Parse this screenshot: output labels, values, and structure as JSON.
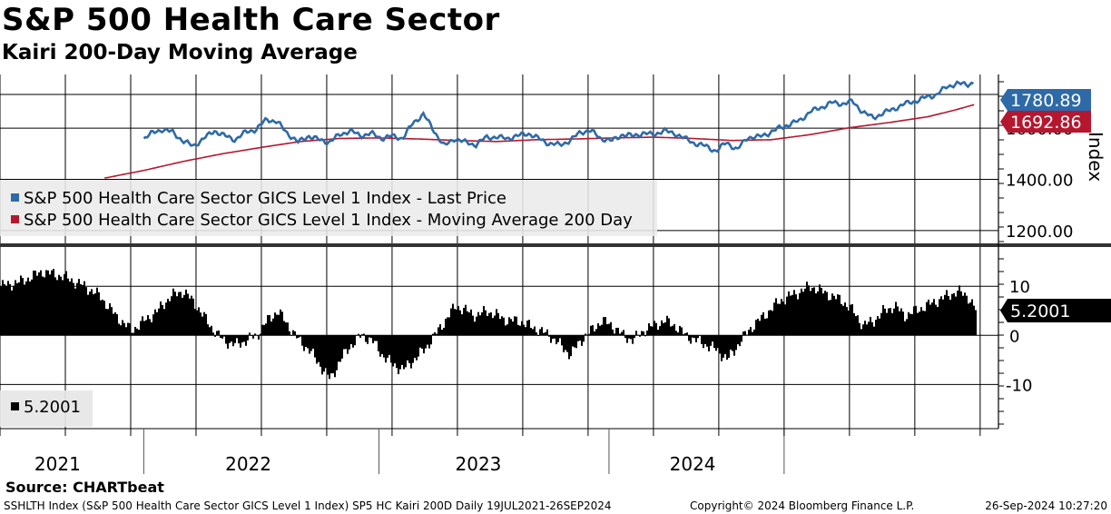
{
  "title": "S&P 500 Health Care Sector",
  "subtitle": "Kairi 200-Day Moving Average",
  "source": "Source: CHARTbeat",
  "footer": {
    "left": "SSHLTH Index (S&P 500 Health Care Sector GICS Level 1 Index) SP5 HC Kairi 200D  Daily 19JUL2021-26SEP2024",
    "middle": "Copyright© 2024 Bloomberg Finance L.P.",
    "right": "26-Sep-2024 10:27:20"
  },
  "colors": {
    "price": "#2e6aa8",
    "ma": "#b5172f",
    "kairi": "#000000",
    "grid": "#000000"
  },
  "chart_data": [
    {
      "type": "line",
      "title": "S&P 500 Health Care Sector",
      "ylabel": "Index",
      "ylim": [
        1150,
        1810
      ],
      "y_ticks": [
        "1600.00",
        "1400.00",
        "1200.00"
      ],
      "x_ticks": [
        "2021",
        "2022",
        "2023",
        "2024"
      ],
      "x_range": [
        "2021-07-19",
        "2024-09-26"
      ],
      "legend": [
        "S&P 500 Health Care Sector GICS Level 1 Index - Last Price",
        "S&P 500 Health Care Sector GICS Level 1 Index - Moving Average 200 Day"
      ],
      "last_labels": {
        "price": "1780.89",
        "ma": "1692.86"
      },
      "series": [
        {
          "name": "Last Price",
          "x": [
            2021.55,
            2021.58,
            2021.62,
            2021.66,
            2021.7,
            2021.74,
            2021.78,
            2021.82,
            2021.86,
            2021.9,
            2021.94,
            2021.98,
            2022.02,
            2022.06,
            2022.1,
            2022.14,
            2022.18,
            2022.22,
            2022.26,
            2022.3,
            2022.34,
            2022.38,
            2022.42,
            2022.46,
            2022.5,
            2022.54,
            2022.58,
            2022.62,
            2022.66,
            2022.7,
            2022.74,
            2022.78,
            2022.82,
            2022.86,
            2022.9,
            2022.94,
            2022.98,
            2023.02,
            2023.06,
            2023.1,
            2023.14,
            2023.18,
            2023.22,
            2023.26,
            2023.3,
            2023.34,
            2023.38,
            2023.42,
            2023.46,
            2023.5,
            2023.54,
            2023.58,
            2023.62,
            2023.66,
            2023.7,
            2023.74,
            2023.78,
            2023.82,
            2023.86,
            2023.9,
            2023.94,
            2023.98,
            2024.02,
            2024.06,
            2024.1,
            2024.14,
            2024.18,
            2024.22,
            2024.26,
            2024.3,
            2024.34,
            2024.38,
            2024.42,
            2024.46,
            2024.5,
            2024.54,
            2024.58,
            2024.62,
            2024.66,
            2024.7,
            2024.73
          ],
          "values": [
            1560,
            1580,
            1595,
            1585,
            1550,
            1530,
            1560,
            1590,
            1570,
            1555,
            1585,
            1595,
            1635,
            1625,
            1580,
            1545,
            1570,
            1555,
            1545,
            1575,
            1590,
            1570,
            1580,
            1560,
            1570,
            1560,
            1620,
            1655,
            1590,
            1530,
            1560,
            1545,
            1535,
            1565,
            1565,
            1560,
            1570,
            1580,
            1560,
            1540,
            1535,
            1550,
            1585,
            1590,
            1560,
            1550,
            1575,
            1570,
            1580,
            1575,
            1590,
            1580,
            1560,
            1540,
            1530,
            1510,
            1545,
            1515,
            1565,
            1565,
            1580,
            1600,
            1615,
            1630,
            1665,
            1680,
            1700,
            1695,
            1705,
            1665,
            1640,
            1660,
            1675,
            1695,
            1705,
            1720,
            1730,
            1760,
            1775,
            1770,
            1780.89
          ]
        },
        {
          "name": "Moving Average 200 Day",
          "x": [
            2021.4,
            2021.55,
            2021.7,
            2021.85,
            2022.0,
            2022.15,
            2022.3,
            2022.45,
            2022.6,
            2022.75,
            2022.9,
            2023.05,
            2023.2,
            2023.35,
            2023.5,
            2023.65,
            2023.8,
            2023.95,
            2024.1,
            2024.25,
            2024.4,
            2024.55,
            2024.65,
            2024.73
          ],
          "values": [
            1405,
            1435,
            1470,
            1500,
            1525,
            1548,
            1560,
            1562,
            1558,
            1552,
            1548,
            1555,
            1558,
            1562,
            1565,
            1560,
            1552,
            1555,
            1575,
            1602,
            1622,
            1645,
            1670,
            1692.86
          ]
        }
      ]
    },
    {
      "type": "area",
      "title": "Kairi 200-Day Moving Average",
      "ylim": [
        -19,
        18
      ],
      "y_ticks": [
        "10",
        "0",
        "-10"
      ],
      "legend": [
        "5.2001"
      ],
      "last_label": "5.2001",
      "series": [
        {
          "name": "Kairi 200D",
          "x": [
            2021.0,
            2021.08,
            2021.16,
            2021.24,
            2021.32,
            2021.38,
            2021.44,
            2021.5,
            2021.55,
            2021.6,
            2021.65,
            2021.7,
            2021.75,
            2021.8,
            2021.85,
            2021.9,
            2021.94,
            2021.98,
            2022.02,
            2022.06,
            2022.1,
            2022.14,
            2022.18,
            2022.22,
            2022.26,
            2022.3,
            2022.34,
            2022.38,
            2022.42,
            2022.46,
            2022.5,
            2022.54,
            2022.58,
            2022.62,
            2022.66,
            2022.7,
            2022.74,
            2022.78,
            2022.82,
            2022.86,
            2022.9,
            2022.94,
            2022.98,
            2023.02,
            2023.06,
            2023.1,
            2023.14,
            2023.18,
            2023.22,
            2023.26,
            2023.3,
            2023.34,
            2023.38,
            2023.42,
            2023.46,
            2023.5,
            2023.54,
            2023.58,
            2023.62,
            2023.66,
            2023.7,
            2023.74,
            2023.78,
            2023.82,
            2023.86,
            2023.9,
            2023.94,
            2023.98,
            2024.02,
            2024.06,
            2024.1,
            2024.14,
            2024.18,
            2024.22,
            2024.26,
            2024.3,
            2024.34,
            2024.38,
            2024.42,
            2024.46,
            2024.5,
            2024.54,
            2024.58,
            2024.62,
            2024.66,
            2024.7,
            2024.73
          ],
          "values": [
            10,
            11,
            13,
            12,
            10,
            8,
            4,
            1,
            3,
            5,
            8,
            9,
            6,
            2,
            -1,
            -2,
            -1,
            0,
            3,
            5,
            2,
            -1,
            -3,
            -6,
            -9,
            -5,
            -2,
            0,
            -1,
            -4,
            -6,
            -7,
            -5,
            -3,
            0,
            3,
            6,
            5,
            4,
            5,
            4,
            3,
            3,
            2,
            1,
            0,
            -2,
            -4,
            -1,
            1,
            3,
            2,
            0,
            -1,
            1,
            2,
            3,
            2,
            0,
            -1,
            -2,
            -3,
            -5,
            -2,
            1,
            3,
            5,
            7,
            8,
            9,
            10,
            9,
            8,
            7,
            5,
            2,
            3,
            5,
            6,
            4,
            5,
            6,
            7,
            8,
            9,
            8,
            5.2001
          ]
        }
      ]
    }
  ]
}
